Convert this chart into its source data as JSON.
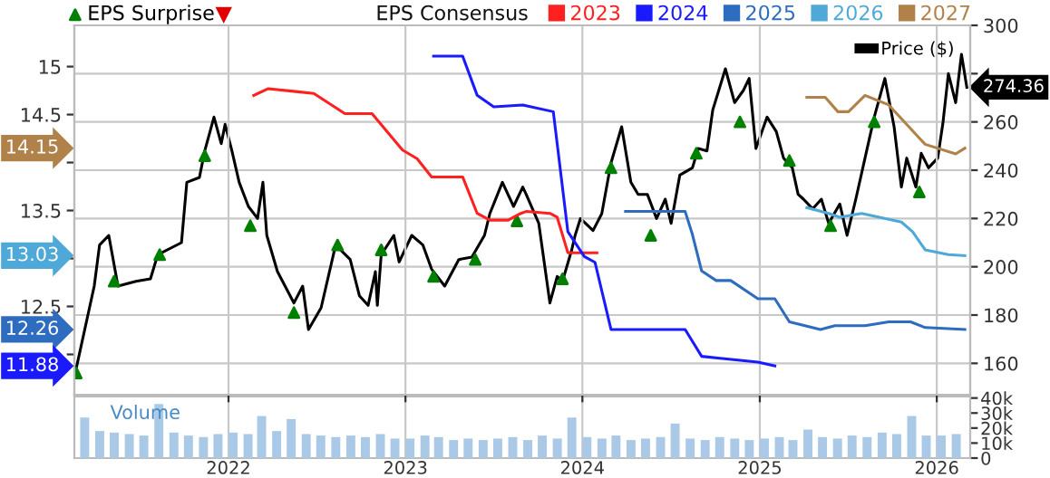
{
  "chart_data": [
    {
      "type": "line",
      "legend_title": "EPS Consensus",
      "legend": "top",
      "grid": true,
      "tick_labels": "y",
      "xlim": [
        "2021-02-17",
        "2026-03-11"
      ],
      "xticks": [
        "2022",
        "2023",
        "2024",
        "2025",
        "2026"
      ],
      "ylim": [
        11.58,
        15.43
      ],
      "yticks": [
        {
          "value": 12,
          "label": null
        },
        12.5,
        {
          "value": 13,
          "label": null
        },
        13.5,
        {
          "value": 14,
          "label": null
        },
        14.5,
        15
      ],
      "y2lim": [
        147,
        300
      ],
      "y2ticks": [
        160,
        180,
        200,
        220,
        240,
        260,
        {
          "value": 280,
          "label": null
        },
        300
      ],
      "annotations": [
        "274.36",
        "14.15",
        "13.03",
        "12.26",
        "11.88"
      ],
      "series": [
        {
          "name": "Price ($)",
          "type": "line",
          "axis": "y2",
          "color": "#000000",
          "x": [
            "2021-02-21",
            "2021-03-30",
            "2021-04-10",
            "2021-04-29",
            "2021-05-18",
            "2021-06-24",
            "2021-07-24",
            "2021-08-08",
            "2021-09-26",
            "2021-10-07",
            "2021-11-02",
            "2021-11-13",
            "2021-12-02",
            "2021-12-17",
            "2021-12-25",
            "2022-01-08",
            "2022-01-23",
            "2022-02-11",
            "2022-03-02",
            "2022-03-13",
            "2022-03-21",
            "2022-04-12",
            "2022-05-16",
            "2022-06-03",
            "2022-06-15",
            "2022-07-11",
            "2022-08-10",
            "2022-09-09",
            "2022-09-28",
            "2022-10-16",
            "2022-10-31",
            "2022-11-04",
            "2022-11-12",
            "2022-12-08",
            "2022-12-19",
            "2023-01-14",
            "2023-02-06",
            "2023-02-24",
            "2023-03-23",
            "2023-04-21",
            "2023-05-18",
            "2023-06-13",
            "2023-06-24",
            "2023-07-20",
            "2023-08-12",
            "2023-08-31",
            "2023-09-07",
            "2023-10-03",
            "2023-10-26",
            "2023-11-10",
            "2023-11-21",
            "2023-12-10",
            "2023-12-17",
            "2023-12-28",
            "2024-01-23",
            "2024-02-10",
            "2024-02-29",
            "2024-03-22",
            "2024-04-10",
            "2024-04-25",
            "2024-05-14",
            "2024-06-02",
            "2024-06-20",
            "2024-07-02",
            "2024-07-20",
            "2024-08-15",
            "2024-08-27",
            "2024-09-14",
            "2024-09-26",
            "2024-10-22",
            "2024-11-10",
            "2024-11-28",
            "2024-12-10",
            "2024-12-24",
            "2025-01-16",
            "2025-02-04",
            "2025-02-19",
            "2025-03-09",
            "2025-03-21",
            "2025-04-01",
            "2025-04-20",
            "2025-05-08",
            "2025-05-23",
            "2025-06-15",
            "2025-06-30",
            "2025-07-18",
            "2025-08-06",
            "2025-08-25",
            "2025-09-16",
            "2025-10-05",
            "2025-10-20",
            "2025-10-31",
            "2025-11-19",
            "2025-11-30",
            "2025-12-15",
            "2026-01-03",
            "2026-01-14",
            "2026-01-25",
            "2026-02-09",
            "2026-02-21",
            "2026-03-04"
          ],
          "values": [
            158,
            192,
            209,
            213,
            192,
            194,
            195,
            205,
            210,
            235,
            237,
            248,
            262,
            251,
            259,
            248,
            235,
            225,
            220,
            235,
            213,
            198,
            185,
            192,
            174,
            183,
            209,
            203,
            188,
            184,
            198,
            184,
            205,
            213,
            202,
            213,
            209,
            199,
            192,
            203,
            204,
            213,
            222,
            235,
            225,
            233,
            230,
            218,
            185,
            196,
            194,
            207,
            213,
            220,
            215,
            222,
            243,
            258,
            235,
            230,
            230,
            220,
            228,
            218,
            238,
            241,
            249,
            248,
            265,
            282,
            268,
            273,
            278,
            249,
            262,
            256,
            245,
            241,
            230,
            228,
            224,
            228,
            218,
            226,
            213,
            228,
            245,
            262,
            278,
            258,
            233,
            245,
            233,
            247,
            241,
            245,
            260,
            280,
            268,
            288,
            274.36
          ]
        },
        {
          "name": "EPS Surprise",
          "type": "scatter",
          "axis": "y2",
          "color": "#008000",
          "marker": "triangle",
          "x": [
            "2021-02-21",
            "2021-05-10",
            "2021-08-12",
            "2021-11-13",
            "2022-02-15",
            "2022-05-16",
            "2022-08-14",
            "2022-11-12",
            "2023-02-28",
            "2023-05-25",
            "2023-08-19",
            "2023-11-21",
            "2024-02-29",
            "2024-05-21",
            "2024-08-23",
            "2024-11-21",
            "2025-03-03",
            "2025-05-27",
            "2025-08-25",
            "2025-11-26"
          ],
          "values": [
            156,
            194,
            205,
            246,
            217,
            181,
            209,
            207,
            196,
            203,
            219,
            195,
            241,
            213,
            247,
            260,
            244,
            217,
            260,
            231
          ]
        },
        {
          "type": "scatter",
          "axis": "y2",
          "color": "#e00000",
          "marker": "triangle"
        },
        {
          "name": "2023",
          "type": "line",
          "color": "#ff2020",
          "x": [
            "2022-02-22",
            "2022-03-24",
            "2022-05-20",
            "2022-06-26",
            "2022-08-29",
            "2022-10-24",
            "2022-12-26",
            "2023-01-25",
            "2023-02-24",
            "2023-04-29",
            "2023-05-29",
            "2023-06-24",
            "2023-08-01",
            "2023-08-27",
            "2023-09-07",
            "2023-10-26",
            "2023-11-10",
            "2023-12-02",
            "2024-01-31"
          ],
          "values": [
            14.7,
            14.77,
            14.74,
            14.72,
            14.51,
            14.51,
            14.13,
            14.04,
            13.85,
            13.85,
            13.47,
            13.4,
            13.4,
            13.47,
            13.49,
            13.47,
            13.43,
            13.06,
            13.06
          ]
        },
        {
          "name": "2024",
          "type": "line",
          "color": "#1a1aff",
          "x": [
            "2023-02-28",
            "2023-04-29",
            "2023-05-29",
            "2023-07-02",
            "2023-08-31",
            "2023-11-02",
            "2023-12-02",
            "2024-01-05",
            "2024-01-27",
            "2024-02-29",
            "2024-04-06",
            "2024-06-05",
            "2024-07-31",
            "2024-09-03",
            "2024-10-11",
            "2024-11-17",
            "2024-12-28",
            "2025-02-01"
          ],
          "values": [
            15.11,
            15.11,
            14.7,
            14.58,
            14.6,
            14.53,
            13.28,
            13.02,
            12.96,
            12.26,
            12.26,
            12.26,
            12.26,
            11.98,
            11.96,
            11.94,
            11.92,
            11.88
          ]
        },
        {
          "name": "2025",
          "type": "line",
          "color": "#2e6cc0",
          "x": [
            "2024-03-30",
            "2024-07-31",
            "2024-08-15",
            "2024-09-03",
            "2024-10-03",
            "2024-11-02",
            "2024-12-28",
            "2025-02-01",
            "2025-03-03",
            "2025-05-06",
            "2025-06-05",
            "2025-08-06",
            "2025-09-24",
            "2025-11-08",
            "2025-12-08",
            "2026-02-28"
          ],
          "values": [
            13.49,
            13.49,
            13.25,
            12.87,
            12.77,
            12.77,
            12.58,
            12.58,
            12.34,
            12.26,
            12.3,
            12.3,
            12.34,
            12.34,
            12.28,
            12.26
          ]
        },
        {
          "name": "2026",
          "type": "line",
          "color": "#4ea9d9",
          "x": [
            "2025-04-08",
            "2025-05-23",
            "2025-06-15",
            "2025-07-30",
            "2025-10-20",
            "2025-11-12",
            "2025-12-08",
            "2026-01-25",
            "2026-02-28"
          ],
          "values": [
            13.53,
            13.47,
            13.43,
            13.47,
            13.38,
            13.28,
            13.09,
            13.04,
            13.03
          ]
        },
        {
          "name": "2027",
          "type": "line",
          "color": "#b0824a",
          "x": [
            "2025-04-08",
            "2025-05-16",
            "2025-06-11",
            "2025-07-03",
            "2025-08-06",
            "2025-09-24",
            "2025-12-08",
            "2026-02-09",
            "2026-02-28"
          ],
          "values": [
            14.68,
            14.68,
            14.53,
            14.53,
            14.7,
            14.6,
            14.19,
            14.09,
            14.15
          ]
        }
      ]
    },
    {
      "type": "bar",
      "title": "Volume",
      "grid": "x",
      "color": "#a9c9e6",
      "xlim": [
        "2021-02-17",
        "2026-03-11"
      ],
      "xticks": [
        "2022",
        "2023",
        "2024",
        "2025",
        "2026"
      ],
      "ylim": [
        0,
        41000
      ],
      "yticks": [
        0,
        {
          "value": 10000,
          "label": "10k"
        },
        {
          "value": 20000,
          "label": "20k"
        },
        {
          "value": 30000,
          "label": "30k"
        },
        {
          "value": 40000,
          "label": "40k"
        }
      ],
      "x": [
        "2021-03",
        "2021-04",
        "2021-05",
        "2021-06",
        "2021-07",
        "2021-08",
        "2021-09",
        "2021-10",
        "2021-11",
        "2021-12",
        "2022-01",
        "2022-02",
        "2022-03",
        "2022-04",
        "2022-05",
        "2022-06",
        "2022-07",
        "2022-08",
        "2022-09",
        "2022-10",
        "2022-11",
        "2022-12",
        "2023-01",
        "2023-02",
        "2023-03",
        "2023-04",
        "2023-05",
        "2023-06",
        "2023-07",
        "2023-08",
        "2023-09",
        "2023-10",
        "2023-11",
        "2023-12",
        "2024-01",
        "2024-02",
        "2024-03",
        "2024-04",
        "2024-05",
        "2024-06",
        "2024-07",
        "2024-08",
        "2024-09",
        "2024-10",
        "2024-11",
        "2024-12",
        "2025-01",
        "2025-02",
        "2025-03",
        "2025-04",
        "2025-05",
        "2025-06",
        "2025-07",
        "2025-08",
        "2025-09",
        "2025-10",
        "2025-11",
        "2025-12",
        "2026-01",
        "2026-02"
      ],
      "values": [
        27000,
        18000,
        17000,
        16000,
        15000,
        36000,
        17000,
        15000,
        14000,
        16000,
        17000,
        16000,
        28000,
        18000,
        26000,
        16000,
        15000,
        14000,
        15000,
        14000,
        16000,
        13000,
        13000,
        15000,
        14000,
        12000,
        13000,
        12000,
        13000,
        14000,
        12000,
        15000,
        13000,
        27000,
        14000,
        13000,
        15000,
        12000,
        13000,
        14000,
        23000,
        13000,
        12000,
        14000,
        13000,
        12000,
        13000,
        14000,
        12000,
        19000,
        14000,
        13000,
        15000,
        14000,
        17000,
        16000,
        28000,
        15000,
        15000,
        16000
      ]
    }
  ]
}
